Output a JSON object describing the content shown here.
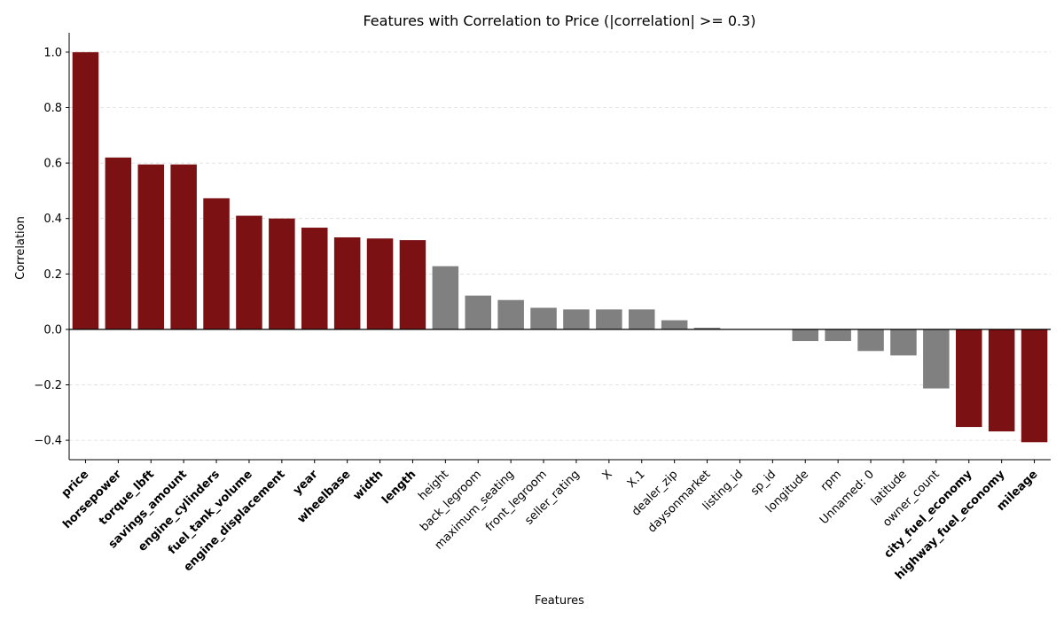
{
  "chart_data": {
    "type": "bar",
    "title": "Features with Correlation to Price (|correlation| >= 0.3)",
    "xlabel": "Features",
    "ylabel": "Correlation",
    "ylim": [
      -0.47,
      1.07
    ],
    "yticks": [
      -0.4,
      -0.2,
      0.0,
      0.2,
      0.4,
      0.6,
      0.8,
      1.0
    ],
    "ytick_labels": [
      "−0.4",
      "−0.2",
      "0.0",
      "0.2",
      "0.4",
      "0.6",
      "0.8",
      "1.0"
    ],
    "threshold": 0.3,
    "grid": "y-dashed",
    "colors": {
      "strong": "#7b1113",
      "weak": "#808080"
    },
    "categories": [
      "price",
      "horsepower",
      "torque_lbft",
      "savings_amount",
      "engine_cylinders",
      "fuel_tank_volume",
      "engine_displacement",
      "year",
      "wheelbase",
      "width",
      "length",
      "height",
      "back_legroom",
      "maximum_seating",
      "front_legroom",
      "seller_rating",
      "X",
      "X.1",
      "dealer_zip",
      "daysonmarket",
      "listing_id",
      "sp_id",
      "longitude",
      "rpm",
      "Unnamed: 0",
      "latitude",
      "owner_count",
      "city_fuel_economy",
      "highway_fuel_economy",
      "mileage"
    ],
    "values": [
      1.0,
      0.62,
      0.595,
      0.595,
      0.473,
      0.41,
      0.4,
      0.367,
      0.332,
      0.328,
      0.322,
      0.228,
      0.122,
      0.106,
      0.078,
      0.072,
      0.072,
      0.072,
      0.033,
      0.006,
      0.0,
      0.0,
      -0.042,
      -0.042,
      -0.078,
      -0.094,
      -0.213,
      -0.352,
      -0.368,
      -0.407
    ]
  }
}
